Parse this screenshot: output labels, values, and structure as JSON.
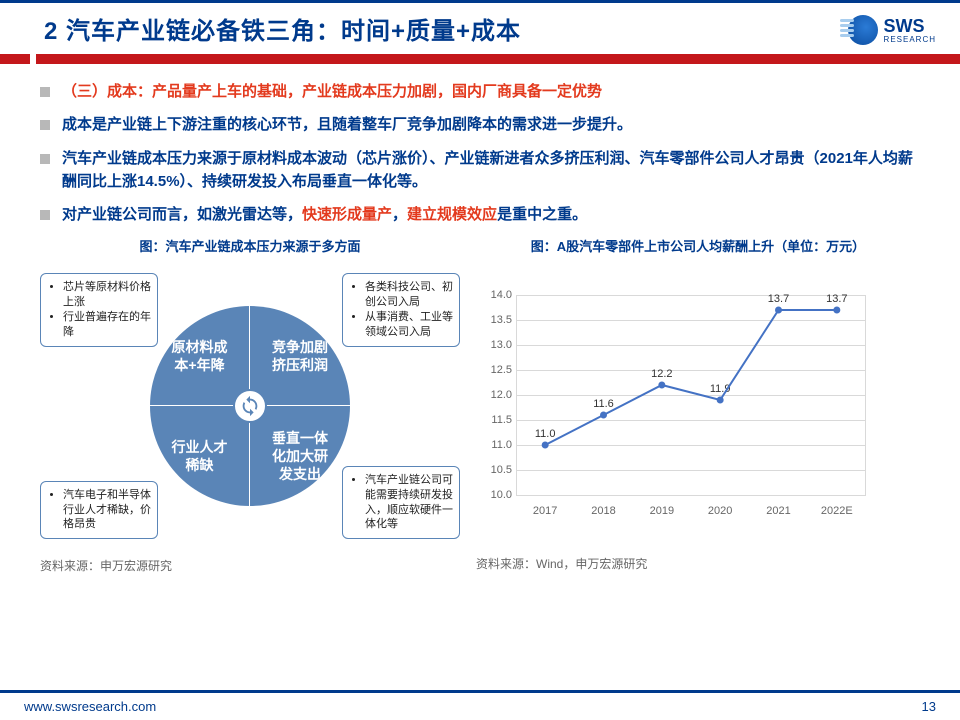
{
  "header": {
    "title": "2 汽车产业链必备铁三角：时间+质量+成本",
    "logo_main": "SWS",
    "logo_sub": "RESEARCH"
  },
  "bullets": [
    {
      "pre": "（三）成本：",
      "pre_color": "red",
      "rest": "产品量产上车的基础，产业链成本压力加剧，国内厂商具备一定优势",
      "rest_color": "red"
    },
    {
      "text": "成本是产业链上下游注重的核心环节，且随着整车厂竞争加剧降本的需求进一步提升。"
    },
    {
      "text": "汽车产业链成本压力来源于原材料成本波动（芯片涨价）、产业链新进者众多挤压利润、汽车零部件公司人才昂贵（2021年人均薪酬同比上涨14.5%）、持续研发投入布局垂直一体化等。"
    },
    {
      "pre": "对产业链公司而言，如激光雷达等，",
      "mid": "快速形成量产",
      "mid_color": "red",
      "post": "，",
      "tail": "建立规模效应",
      "tail_color": "red",
      "end": "是重中之重。"
    }
  ],
  "diagram": {
    "title": "图：汽车产业链成本压力来源于多方面",
    "quadrants": {
      "tl": "原材料成\n本+年降",
      "tr": "竞争加剧\n挤压利润",
      "bl": "行业人才\n稀缺",
      "br": "垂直一体\n化加大研\n发支出"
    },
    "boxes": {
      "tl": [
        "芯片等原材料价格上涨",
        "行业普遍存在的年降"
      ],
      "tr": [
        "各类科技公司、初创公司入局",
        "从事消费、工业等领域公司入局"
      ],
      "bl": [
        "汽车电子和半导体行业人才稀缺，价格昂贵"
      ],
      "br": [
        "汽车产业链公司可能需要持续研发投入，顺应软硬件一体化等"
      ]
    },
    "quadrant_color": "#5a85b7",
    "source": "资料来源：申万宏源研究"
  },
  "chart": {
    "title": "图：A股汽车零部件上市公司人均薪酬上升（单位：万元）",
    "type": "line",
    "categories": [
      "2017",
      "2018",
      "2019",
      "2020",
      "2021",
      "2022E"
    ],
    "values": [
      11.0,
      11.6,
      12.2,
      11.9,
      13.7,
      13.7
    ],
    "ylim": [
      10.0,
      14.0
    ],
    "ytick_step": 0.5,
    "line_color": "#4472c4",
    "marker_color": "#4472c4",
    "grid_color": "#d9d9d9",
    "label_fontsize": 11,
    "source": "资料来源：Wind，申万宏源研究"
  },
  "footer": {
    "url": "www.swsresearch.com",
    "page": "13"
  }
}
